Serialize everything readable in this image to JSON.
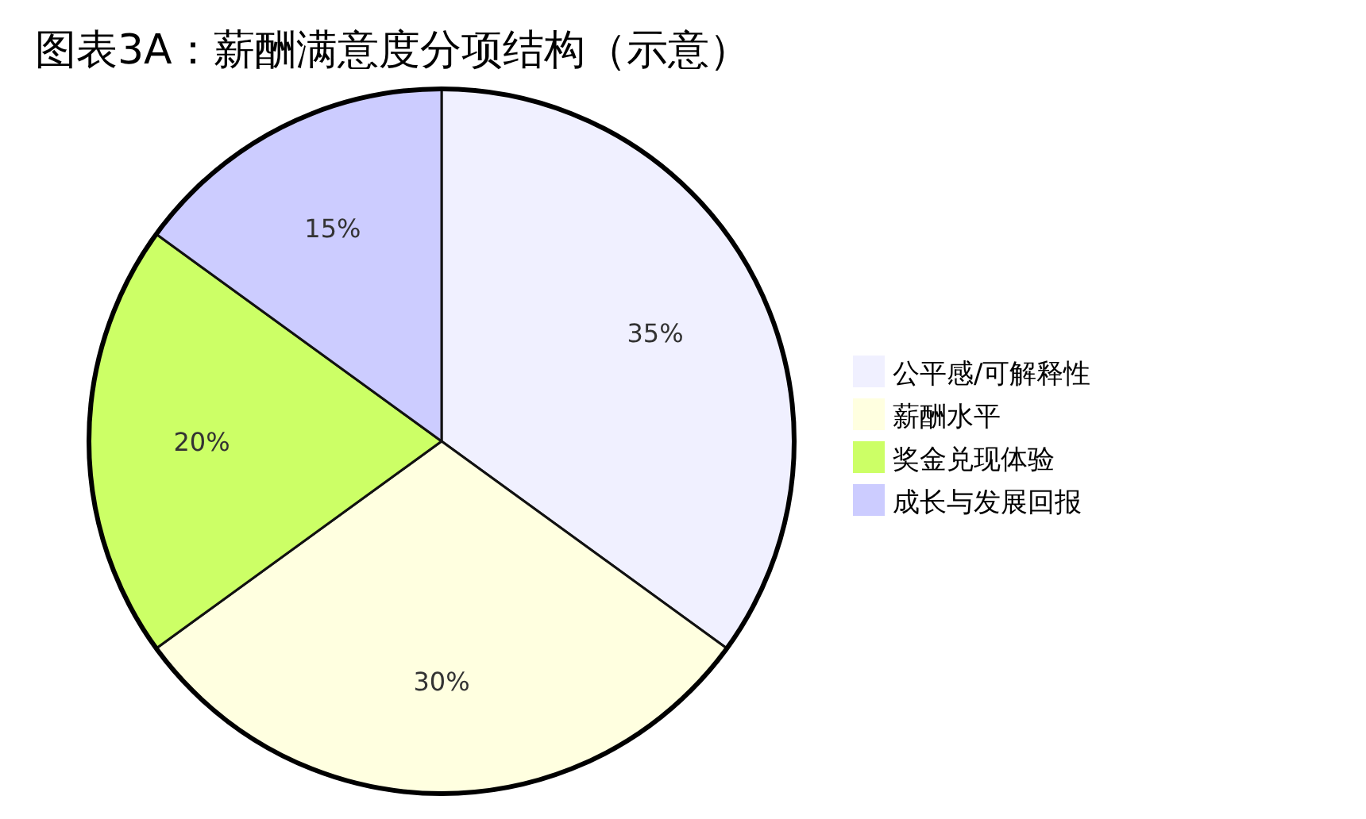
{
  "chart_data": {
    "type": "pie",
    "title": "图表3A：薪酬满意度分项结构（示意）",
    "categories": [
      "公平感/可解释性",
      "薪酬水平",
      "奖金兑现体验",
      "成长与发展回报"
    ],
    "values": [
      35,
      30,
      20,
      15
    ],
    "colors": [
      "#f0f0ff",
      "#ffffe0",
      "#ccff66",
      "#ccccff"
    ],
    "value_labels": [
      "35%",
      "30%",
      "20%",
      "15%"
    ],
    "legend": "right"
  }
}
